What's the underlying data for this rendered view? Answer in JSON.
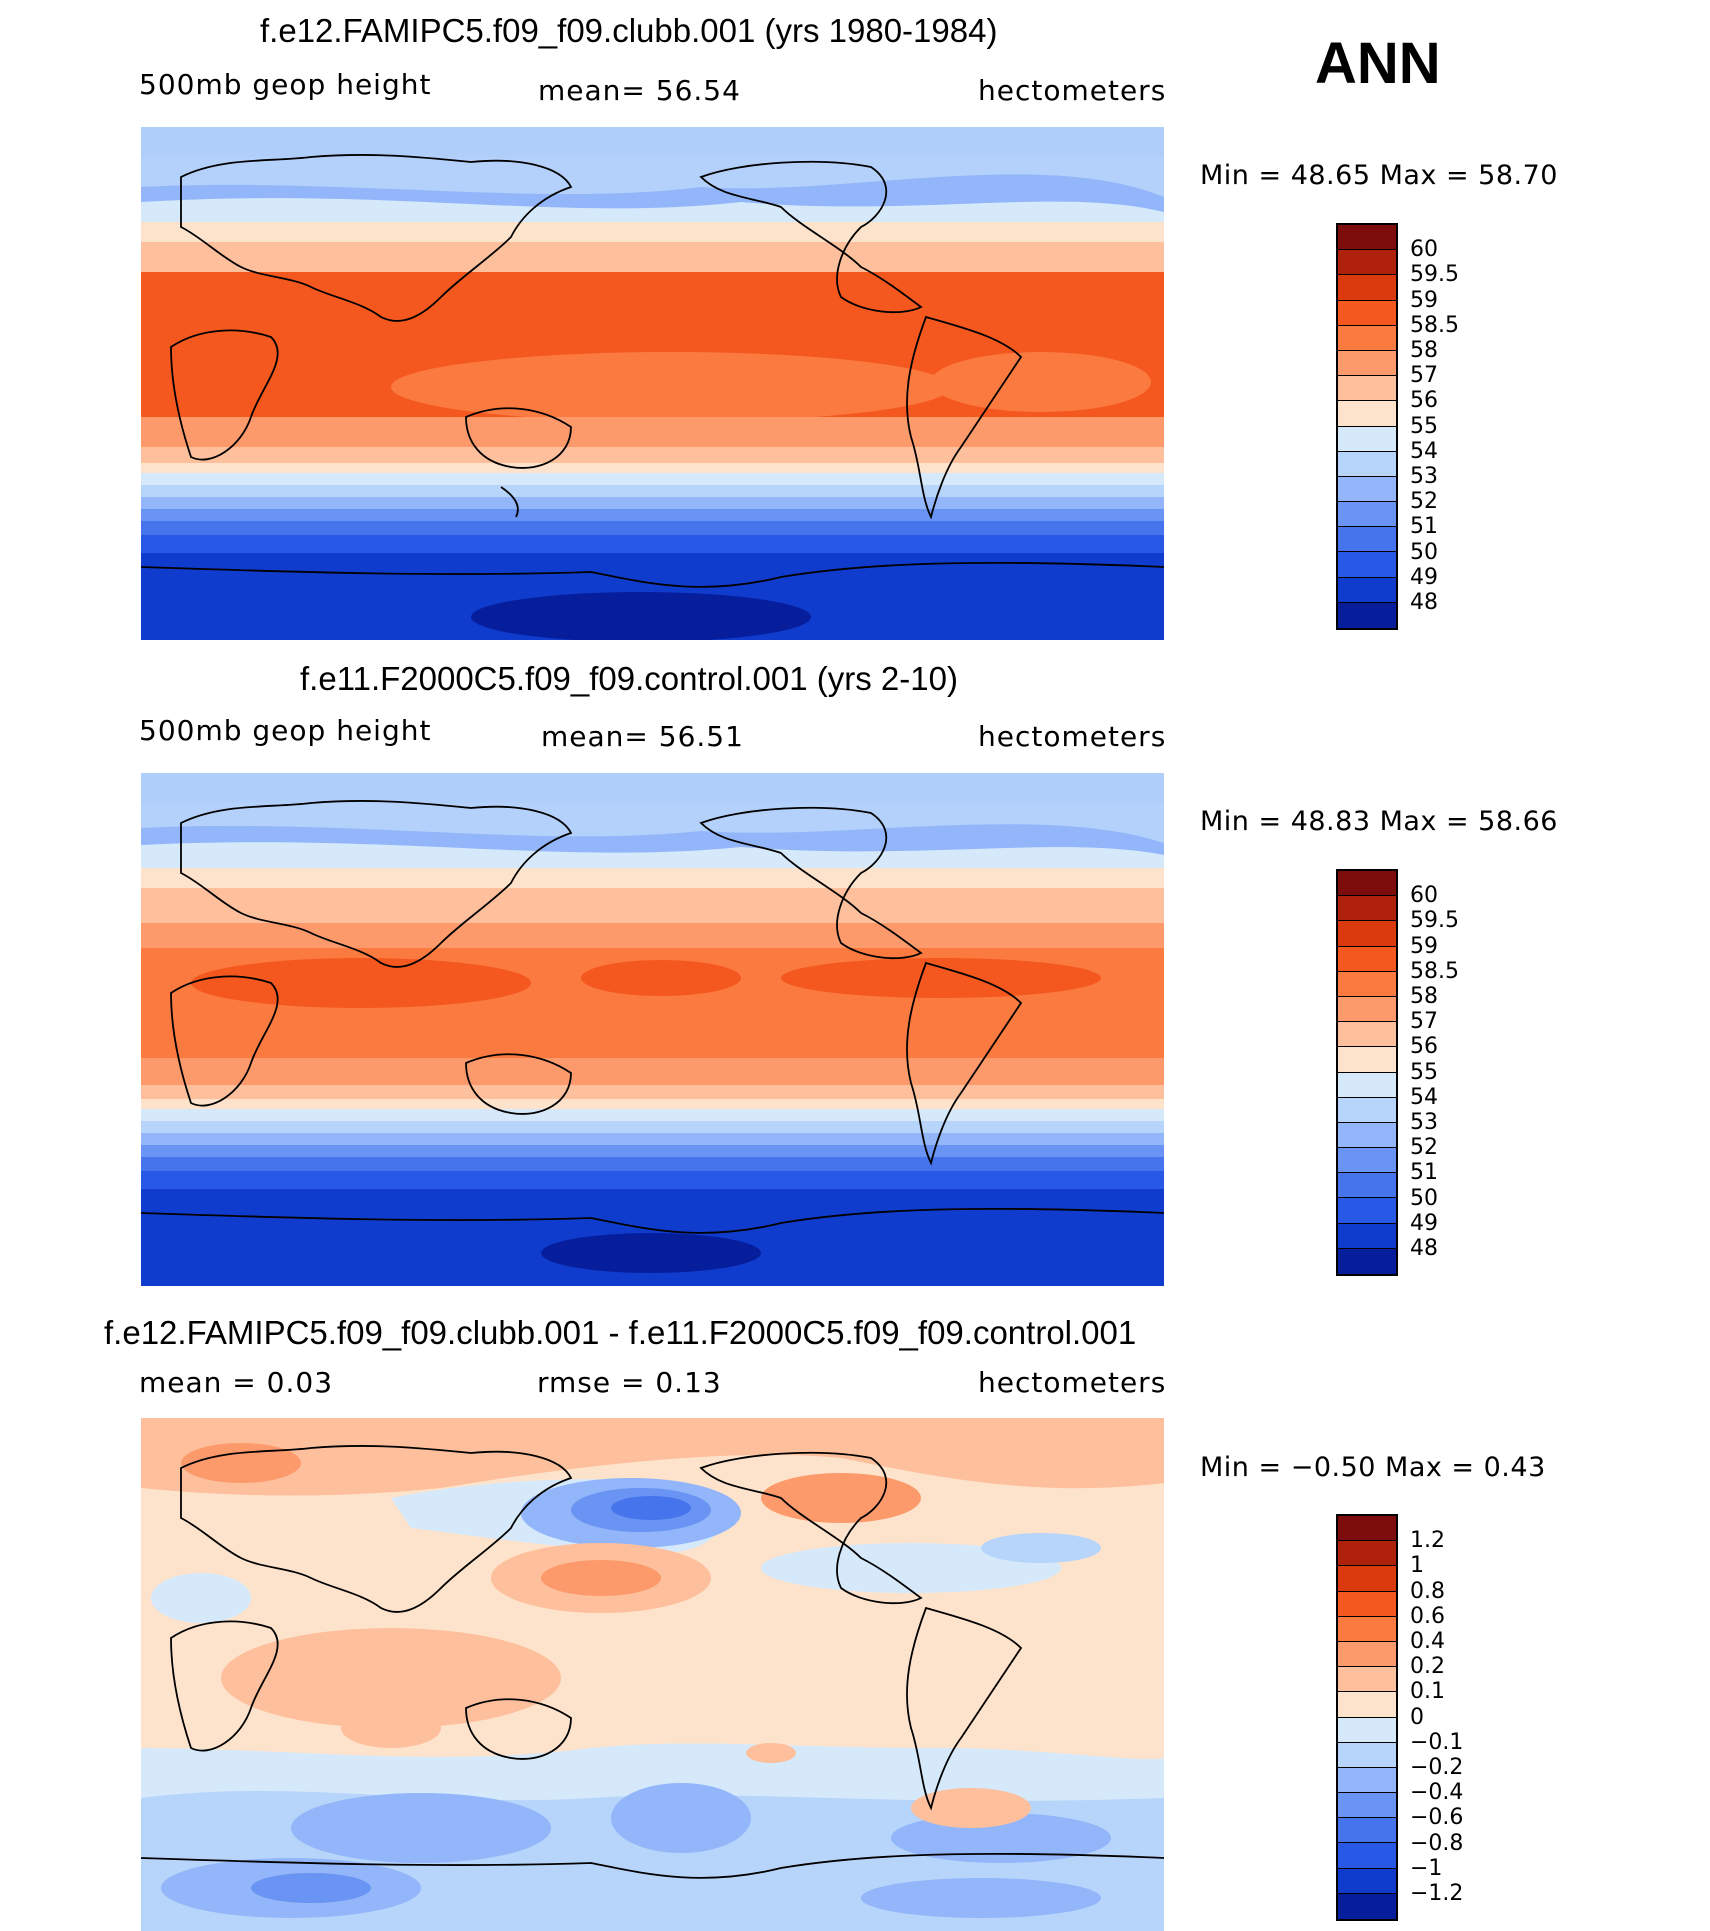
{
  "header": {
    "season": "ANN"
  },
  "panels": [
    {
      "title": "f.e12.FAMIPC5.f09_f09.clubb.001 (yrs 1980-1984)",
      "left_label": "500mb  geop  height",
      "center_label": "mean=   56.54",
      "right_label": "hectometers",
      "minmax": "Min  =    48.65  Max  =    58.70",
      "colorbar_ticks": [
        "60",
        "59.5",
        "59",
        "58.5",
        "58",
        "57",
        "56",
        "55",
        "54",
        "53",
        "52",
        "51",
        "50",
        "49",
        "48"
      ]
    },
    {
      "title": "f.e11.F2000C5.f09_f09.control.001 (yrs 2-10)",
      "left_label": "500mb  geop  height",
      "center_label": "mean=   56.51",
      "right_label": "hectometers",
      "minmax": "Min  =    48.83  Max  =    58.66",
      "colorbar_ticks": [
        "60",
        "59.5",
        "59",
        "58.5",
        "58",
        "57",
        "56",
        "55",
        "54",
        "53",
        "52",
        "51",
        "50",
        "49",
        "48"
      ]
    },
    {
      "title": "f.e12.FAMIPC5.f09_f09.clubb.001 - f.e11.F2000C5.f09_f09.control.001",
      "left_label": "mean  =     0.03",
      "center_label": "rmse  =     0.13",
      "right_label": "hectometers",
      "minmax": "Min  =    −0.50  Max  =      0.43",
      "colorbar_ticks": [
        "1.2",
        "1",
        "0.8",
        "0.6",
        "0.4",
        "0.2",
        "0.1",
        "0",
        "−0.1",
        "−0.2",
        "−0.4",
        "−0.6",
        "−0.8",
        "−1",
        "−1.2"
      ]
    }
  ],
  "colors": {
    "abs_scale": [
      "#7d0c0c",
      "#b0210c",
      "#db3a0e",
      "#f4581f",
      "#fb7a40",
      "#fc9a6c",
      "#fdbf9c",
      "#fee3cc",
      "#d6e9fa",
      "#b7d4fb",
      "#92b6f9",
      "#6a94f3",
      "#4674ed",
      "#2758e6",
      "#0f3ccd",
      "#061e9c"
    ],
    "diff_scale": [
      "#7d0c0c",
      "#b0210c",
      "#db3a0e",
      "#f4581f",
      "#fb7a40",
      "#fc9a6c",
      "#fdbf9c",
      "#fee3cc",
      "#d6e9fa",
      "#b7d4fb",
      "#92b6f9",
      "#6a94f3",
      "#4674ed",
      "#2758e6",
      "#0f3ccd",
      "#061e9c"
    ]
  }
}
